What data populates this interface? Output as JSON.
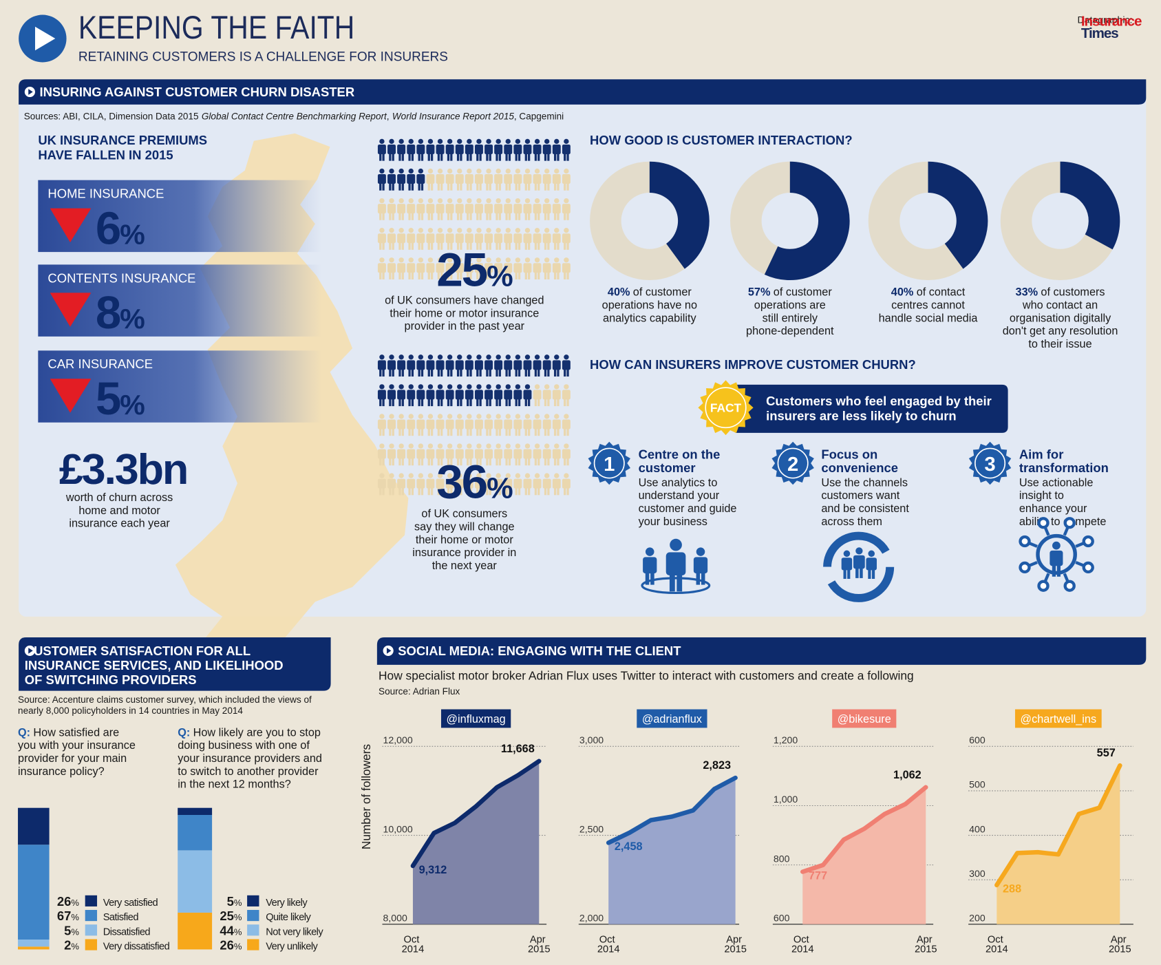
{
  "header": {
    "title": "KEEPING THE FAITH",
    "subtitle": "RETAINING CUSTOMERS IS A CHALLENGE FOR INSURERS",
    "credit": "Datagraphic:",
    "brand": [
      "Insurance",
      "Times"
    ]
  },
  "churn_section": {
    "title": "INSURING AGAINST CUSTOMER CHURN DISASTER",
    "sources": [
      "Sources: ABI, CILA, Dimension Data 2015",
      "Global Contact Centre Benchmarking Report",
      ",",
      "World Insurance Report 2015",
      ", Capgemini"
    ],
    "premiums_title": [
      "UK INSURANCE PREMIUMS",
      "HAVE FALLEN IN 2015"
    ],
    "premiums": [
      {
        "label": "HOME INSURANCE",
        "value": 6,
        "unit": "%"
      },
      {
        "label": "CONTENTS INSURANCE",
        "value": 8,
        "unit": "%"
      },
      {
        "label": "CAR INSURANCE",
        "value": 5,
        "unit": "%"
      }
    ],
    "churn_value": "£3.3bn",
    "churn_text": [
      "worth of churn across",
      "home and motor",
      "insurance each year"
    ],
    "consumer_stats": [
      {
        "value": 25,
        "unit": "%",
        "text": [
          "of UK consumers have changed",
          "their home or motor insurance",
          "provider in the past year"
        ]
      },
      {
        "value": 36,
        "unit": "%",
        "text": [
          "of UK consumers",
          "say they will change",
          "their home or motor",
          "insurance provider in",
          "the next year"
        ]
      }
    ],
    "interaction_title": "HOW GOOD IS CUSTOMER INTERACTION?",
    "improve_title": "HOW CAN INSURERS IMPROVE CUSTOMER CHURN?",
    "fact_badge": "FACT",
    "fact": [
      "Customers who feel engaged by their",
      "insurers are less likely to churn"
    ],
    "steps": [
      {
        "number": "1",
        "title": [
          "Centre on the",
          "customer"
        ],
        "text": [
          "Use analytics to",
          "understand your",
          "customer and guide",
          "your business"
        ]
      },
      {
        "number": "2",
        "title": [
          "Focus on",
          "convenience"
        ],
        "text": [
          "Use the channels",
          "customers want",
          "and be consistent",
          "across them"
        ]
      },
      {
        "number": "3",
        "title": [
          "Aim for",
          "transformation"
        ],
        "text": [
          "Use actionable",
          "insight to",
          "enhance your",
          "ability to compete"
        ]
      }
    ]
  },
  "satisfaction_section": {
    "title": [
      "CUSTOMER SATISFACTION FOR ALL",
      "INSURANCE SERVICES, AND LIKELIHOOD",
      "OF SWITCHING PROVIDERS"
    ],
    "source": [
      "Source: Accenture claims customer survey, which included the views of",
      "nearly 8,000 policyholders in 14 countries in May 2014"
    ]
  },
  "social_section": {
    "title": "SOCIAL MEDIA: ENGAGING WITH THE CLIENT",
    "subtitle": "How specialist motor broker Adrian Flux uses Twitter to interact with customers and create a following",
    "source": "Source: Adrian Flux",
    "y_label": "Number of followers"
  },
  "chart_data": [
    {
      "type": "donut",
      "value": 40,
      "unit": "%",
      "color": "#0d2a6b",
      "track_color": "#e3dccb",
      "caption": [
        "of customer",
        "operations have no",
        "analytics capability"
      ]
    },
    {
      "type": "donut",
      "value": 57,
      "unit": "%",
      "color": "#0d2a6b",
      "track_color": "#e3dccb",
      "caption": [
        "of customer",
        "operations are",
        "still entirely",
        "phone-dependent"
      ]
    },
    {
      "type": "donut",
      "value": 40,
      "unit": "%",
      "color": "#0d2a6b",
      "track_color": "#e3dccb",
      "caption": [
        "of contact",
        "centres cannot",
        "handle social media"
      ]
    },
    {
      "type": "donut",
      "value": 33,
      "unit": "%",
      "color": "#0d2a6b",
      "track_color": "#e3dccb",
      "caption": [
        "of customers",
        "who contact an",
        "organisation digitally",
        "don't get any resolution",
        "to their issue"
      ]
    },
    {
      "type": "stacked_bar",
      "question_marker": "Q:",
      "title": [
        "How satisfied are",
        "you with your insurance",
        "provider for your main",
        "insurance policy?"
      ],
      "unit": "%",
      "series": [
        {
          "name": "Very satisfied",
          "color": "#0d2a6b",
          "values": [
            26
          ]
        },
        {
          "name": "Satisfied",
          "color": "#3f85c8",
          "values": [
            67
          ]
        },
        {
          "name": "Dissatisfied",
          "color": "#8cbce6",
          "values": [
            5
          ]
        },
        {
          "name": "Very dissatisfied",
          "color": "#f7a81b",
          "values": [
            2
          ]
        }
      ]
    },
    {
      "type": "stacked_bar",
      "question_marker": "Q:",
      "title": [
        "How likely are you to stop",
        "doing business with one of",
        "your insurance providers and",
        "to switch to another provider",
        "in the next 12 months?"
      ],
      "unit": "%",
      "series": [
        {
          "name": "Very likely",
          "color": "#0d2a6b",
          "values": [
            5
          ]
        },
        {
          "name": "Quite likely",
          "color": "#3f85c8",
          "values": [
            25
          ]
        },
        {
          "name": "Not very likely",
          "color": "#8cbce6",
          "values": [
            44
          ]
        },
        {
          "name": "Very unlikely",
          "color": "#f7a81b",
          "values": [
            26
          ]
        }
      ]
    },
    {
      "type": "area",
      "title": "@influxmag",
      "color": "#0d2a6b",
      "fill": "#7f84a8",
      "categories": [
        "Oct 2014",
        null,
        null,
        null,
        null,
        null,
        "Apr 2015"
      ],
      "values": [
        9312,
        10050,
        10280,
        10650,
        11080,
        11350,
        11668
      ],
      "value_labels": [
        "9,312",
        null,
        null,
        null,
        null,
        null,
        "11,668"
      ],
      "ylim": [
        8000,
        12000
      ],
      "yticks": [
        {
          "value": 8000,
          "label": "8,000"
        },
        {
          "value": 10000,
          "label": "10,000"
        },
        {
          "value": 12000,
          "label": "12,000"
        }
      ],
      "grid": true
    },
    {
      "type": "area",
      "title": "@adrianflux",
      "color": "#1f5ba8",
      "fill": "#99a5cc",
      "categories": [
        "Oct 2014",
        null,
        null,
        null,
        null,
        null,
        "Apr 2015"
      ],
      "values": [
        2458,
        2515,
        2585,
        2605,
        2640,
        2760,
        2823
      ],
      "value_labels": [
        "2,458",
        null,
        null,
        null,
        null,
        null,
        "2,823"
      ],
      "ylim": [
        2000,
        3000
      ],
      "yticks": [
        {
          "value": 2000,
          "label": "2,000"
        },
        {
          "value": 2500,
          "label": "2,500"
        },
        {
          "value": 3000,
          "label": "3,000"
        }
      ],
      "grid": true
    },
    {
      "type": "area",
      "title": "@bikesure",
      "color": "#f07f72",
      "fill": "#f4b8a9",
      "categories": [
        "Oct 2014",
        null,
        null,
        null,
        null,
        null,
        "Apr 2015"
      ],
      "values": [
        777,
        800,
        885,
        922,
        972,
        1005,
        1062
      ],
      "value_labels": [
        "777",
        null,
        null,
        null,
        null,
        null,
        "1,062"
      ],
      "ylim": [
        600,
        1200
      ],
      "yticks": [
        600,
        800,
        {
          "value": 1000,
          "label": "1,000"
        },
        {
          "value": 1200,
          "label": "1,200"
        }
      ],
      "grid": true
    },
    {
      "type": "area",
      "title": "@chartwell_ins",
      "color": "#f6a81e",
      "fill": "#f5cf88",
      "categories": [
        "Oct 2014",
        null,
        null,
        null,
        null,
        null,
        "Apr 2015"
      ],
      "values": [
        288,
        360,
        362,
        357,
        448,
        462,
        557
      ],
      "value_labels": [
        "288",
        null,
        null,
        null,
        null,
        null,
        "557"
      ],
      "ylim": [
        200,
        600
      ],
      "yticks": [
        200,
        300,
        400,
        500,
        600
      ],
      "grid": true
    }
  ]
}
